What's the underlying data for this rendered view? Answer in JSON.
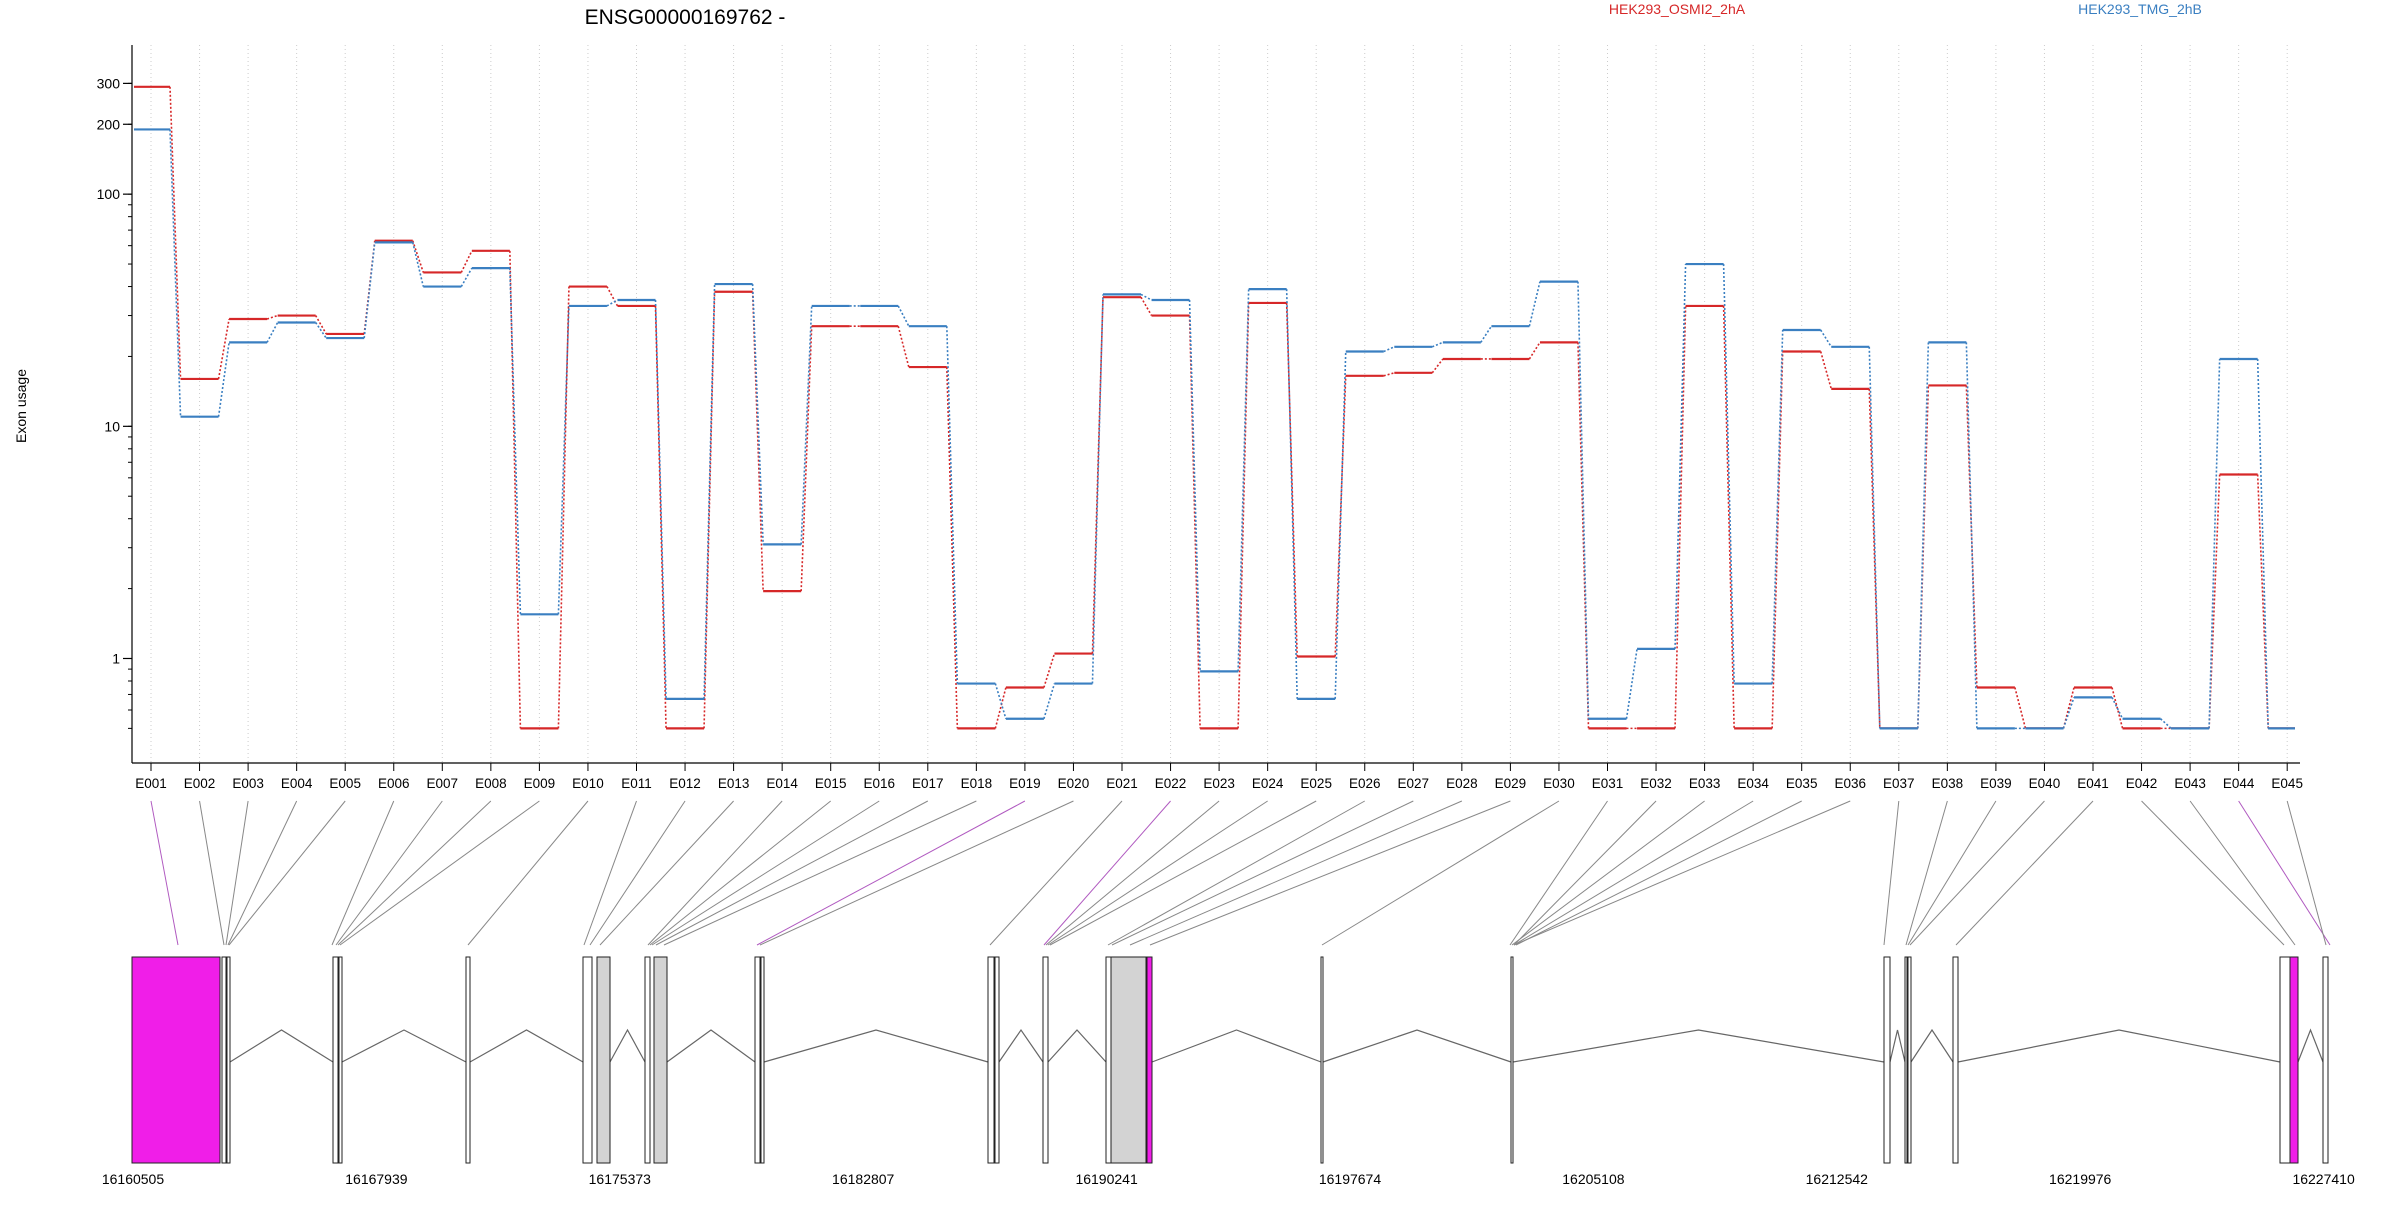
{
  "chart_data": {
    "type": "line",
    "title": "ENSG00000169762 -",
    "ylabel": "Exon usage",
    "xlabel": "",
    "y_scale": "log",
    "ylim": [
      0.45,
      360
    ],
    "y_ticks": [
      1,
      10,
      100,
      200,
      300
    ],
    "grid": "vertical dotted",
    "legend_placement": "top-right",
    "colors": {
      "condition_a": "#d62728",
      "condition_b": "#3a7fc1",
      "highlight": "#f01ee8",
      "exon_fill": "#d3d3d3"
    },
    "categories": [
      "E001",
      "E002",
      "E003",
      "E004",
      "E005",
      "E006",
      "E007",
      "E008",
      "E009",
      "E010",
      "E011",
      "E012",
      "E013",
      "E014",
      "E015",
      "E016",
      "E017",
      "E018",
      "E019",
      "E020",
      "E021",
      "E022",
      "E023",
      "E024",
      "E025",
      "E026",
      "E027",
      "E028",
      "E029",
      "E030",
      "E031",
      "E032",
      "E033",
      "E034",
      "E035",
      "E036",
      "E037",
      "E038",
      "E039",
      "E040",
      "E041",
      "E042",
      "E043",
      "E044",
      "E045"
    ],
    "series": [
      {
        "name": "HEK293_OSMI2_2hA",
        "color": "#d62728",
        "values": [
          290,
          16,
          29,
          30,
          25,
          63,
          46,
          57,
          0.5,
          40,
          33,
          0.5,
          38,
          1.95,
          27,
          27,
          18,
          0.5,
          0.75,
          1.05,
          36,
          30,
          0.5,
          34,
          1.02,
          16.5,
          17,
          19.5,
          19.5,
          23,
          0.5,
          0.5,
          33,
          0.5,
          21,
          14.5,
          0.5,
          15,
          0.75,
          0.5,
          0.75,
          0.5,
          0.5,
          6.2,
          0.5
        ]
      },
      {
        "name": "HEK293_TMG_2hB",
        "color": "#3a7fc1",
        "values": [
          190,
          11,
          23,
          28,
          24,
          62,
          40,
          48,
          1.55,
          33,
          35,
          0.67,
          41,
          3.1,
          33,
          33,
          27,
          0.78,
          0.55,
          0.78,
          37,
          35,
          0.88,
          39,
          0.67,
          21,
          22,
          23,
          27,
          42,
          0.55,
          1.1,
          50,
          0.78,
          26,
          22,
          0.5,
          23,
          0.5,
          0.5,
          0.68,
          0.55,
          0.5,
          19.5,
          0.5
        ]
      }
    ],
    "gene_model": {
      "x_ticks": [
        "16160505",
        "16167939",
        "16175373",
        "16182807",
        "16190241",
        "16197674",
        "16205108",
        "16212542",
        "16219976",
        "16227410"
      ],
      "highlighted_exons": [
        "E001",
        "E019",
        "E022",
        "E044"
      ]
    }
  }
}
